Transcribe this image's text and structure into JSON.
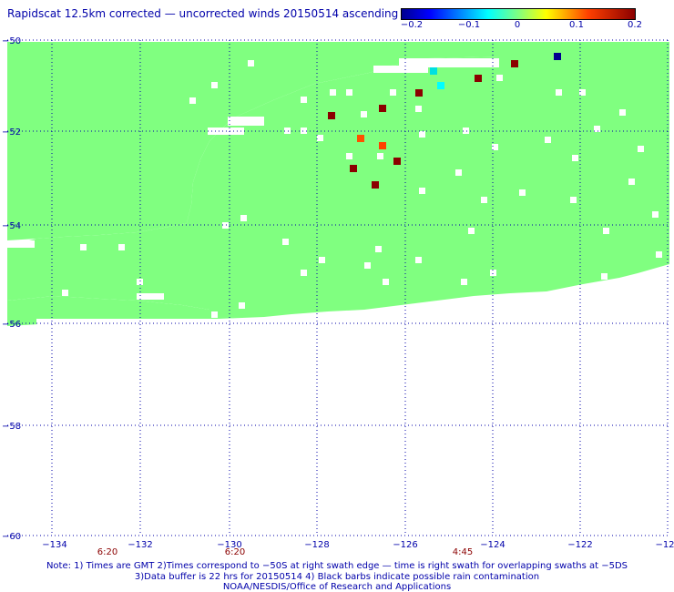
{
  "title": "Rapidscat 12.5km corrected — uncorrected winds 20150514 ascending",
  "colorbar": {
    "ticks": [
      "−0.2",
      "−0.1",
      "0",
      "0.1",
      "0.2"
    ],
    "colors": [
      "#00008f",
      "#0000ff",
      "#00ffff",
      "#80ff80",
      "#ffff00",
      "#ff4000",
      "#8b0000"
    ]
  },
  "map": {
    "lon_labels": [
      "−134",
      "−132",
      "−130",
      "−128",
      "−126",
      "−124",
      "−122",
      "−12"
    ],
    "lat_labels": [
      "−50",
      "−52",
      "−54",
      "−56",
      "−58",
      "−60"
    ],
    "time_labels": [
      "6:20",
      "6:20",
      "4:45"
    ],
    "land_color": "#80ff80",
    "grid_color": "#0000aa"
  },
  "notes": {
    "line1": "Note: 1) Times are GMT 2)Times correspond to −50S at right swath edge — time is right swath for overlapping swaths at −5DS",
    "line2": "3)Data buffer is 22 hrs for 20150514 4) Black barbs indicate possible rain contamination",
    "line3": "NOAA/NESDIS/Office of Research and Applications"
  }
}
